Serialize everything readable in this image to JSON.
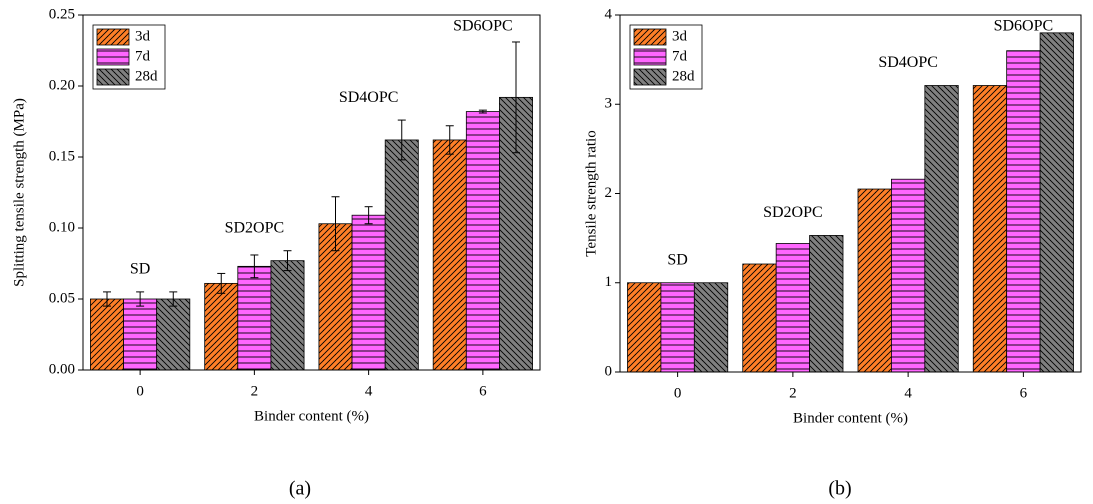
{
  "chart_data": [
    {
      "type": "bar",
      "caption": "(a)",
      "x_label": "Binder content (%)",
      "y_label": "Splitting tensile strength (MPa)",
      "categories": [
        "0",
        "2",
        "4",
        "6"
      ],
      "series": [
        {
          "name": "3d",
          "color": "#ff7f27",
          "hatch": "diagonal",
          "values": [
            0.05,
            0.061,
            0.103,
            0.162
          ],
          "errors": [
            0.005,
            0.007,
            0.019,
            0.01
          ]
        },
        {
          "name": "7d",
          "color": "#ff66ff",
          "hatch": "horizontal",
          "values": [
            0.05,
            0.073,
            0.109,
            0.182
          ],
          "errors": [
            0.005,
            0.008,
            0.006,
            0.001
          ]
        },
        {
          "name": "28d",
          "color": "#808080",
          "hatch": "back-diagonal",
          "values": [
            0.05,
            0.077,
            0.162,
            0.192
          ],
          "errors": [
            0.005,
            0.007,
            0.014,
            0.039
          ]
        }
      ],
      "annotations": [
        "SD",
        "SD2OPC",
        "SD4OPC",
        "SD6OPC"
      ],
      "ylim": [
        0,
        0.25
      ],
      "yticks": [
        {
          "value": 0,
          "label": "0.00"
        },
        0.05,
        {
          "value": 0.1,
          "label": "0.10"
        },
        0.15,
        {
          "value": 0.2,
          "label": "0.20"
        },
        0.25
      ],
      "legend": "upper left"
    },
    {
      "type": "bar",
      "caption": "(b)",
      "x_label": "Binder content (%)",
      "y_label": "Tensile strength ratio",
      "categories": [
        "0",
        "2",
        "4",
        "6"
      ],
      "series": [
        {
          "name": "3d",
          "color": "#ff7f27",
          "hatch": "diagonal",
          "values": [
            1,
            1.21,
            2.05,
            3.21
          ]
        },
        {
          "name": "7d",
          "color": "#ff66ff",
          "hatch": "horizontal",
          "values": [
            1,
            1.44,
            2.16,
            3.6
          ]
        },
        {
          "name": "28d",
          "color": "#808080",
          "hatch": "back-diagonal",
          "values": [
            1,
            1.53,
            3.21,
            3.8
          ]
        }
      ],
      "annotations": [
        "SD",
        "SD2OPC",
        "SD4OPC",
        "SD6OPC"
      ],
      "ylim": [
        0,
        4
      ],
      "yticks": [
        0,
        1,
        2,
        3,
        4
      ],
      "legend": "upper left"
    }
  ]
}
